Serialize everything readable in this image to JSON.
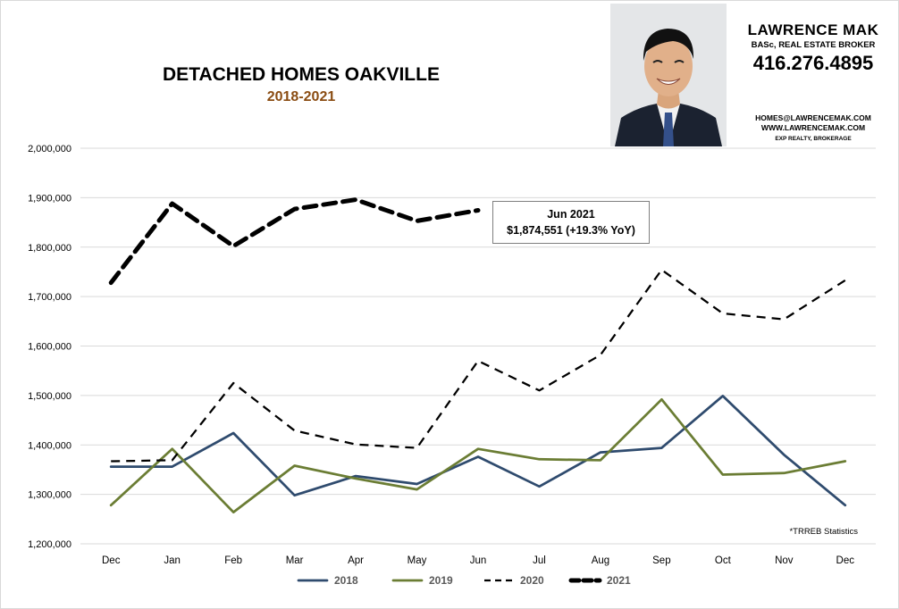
{
  "header": {
    "title": "DETACHED HOMES OAKVILLE",
    "subtitle": "2018-2021"
  },
  "agent": {
    "name": "LAWRENCE MAK",
    "role": "BASc, REAL ESTATE BROKER",
    "phone": "416.276.4895",
    "email": "HOMES@LAWRENCEMAK.COM",
    "website": "WWW.LAWRENCEMAK.COM",
    "brokerage": "EXP REALTY, BROKERAGE"
  },
  "callout": {
    "line1": "Jun 2021",
    "line2": "$1,874,551  (+19.3%  YoY)"
  },
  "source_note": "*TRREB Statistics",
  "chart_data": {
    "type": "line",
    "categories": [
      "Dec",
      "Jan",
      "Feb",
      "Mar",
      "Apr",
      "May",
      "Jun",
      "Jul",
      "Aug",
      "Sep",
      "Oct",
      "Nov",
      "Dec"
    ],
    "ylim": [
      1200000,
      2000000
    ],
    "yticks": [
      1200000,
      1300000,
      1400000,
      1500000,
      1600000,
      1700000,
      1800000,
      1900000,
      2000000
    ],
    "ytick_labels": [
      "1,200,000",
      "1,300,000",
      "1,400,000",
      "1,500,000",
      "1,600,000",
      "1,700,000",
      "1,800,000",
      "1,900,000",
      "2,000,000"
    ],
    "grid": true,
    "legend_position": "bottom",
    "series": [
      {
        "name": "2018",
        "style": "solid",
        "color": "#2f4b6e",
        "values": [
          1356000,
          1356000,
          1424000,
          1298000,
          1337000,
          1321000,
          1376000,
          1316000,
          1385000,
          1394000,
          1499000,
          1380000,
          1278000
        ]
      },
      {
        "name": "2019",
        "style": "solid",
        "color": "#6b7d34",
        "values": [
          1278000,
          1392000,
          1264000,
          1358000,
          1332000,
          1310000,
          1392000,
          1371000,
          1369000,
          1492000,
          1340000,
          1343000,
          1367000
        ]
      },
      {
        "name": "2020",
        "style": "dashed",
        "color": "#000000",
        "values": [
          1367000,
          1369000,
          1525000,
          1429000,
          1401000,
          1394000,
          1570000,
          1510000,
          1582000,
          1754000,
          1666000,
          1654000,
          1733000
        ]
      },
      {
        "name": "2021",
        "style": "dashed-thick",
        "color": "#000000",
        "values": [
          1728000,
          1888000,
          1802000,
          1877000,
          1896000,
          1853000,
          1874551,
          null,
          null,
          null,
          null,
          null,
          null
        ]
      }
    ]
  }
}
